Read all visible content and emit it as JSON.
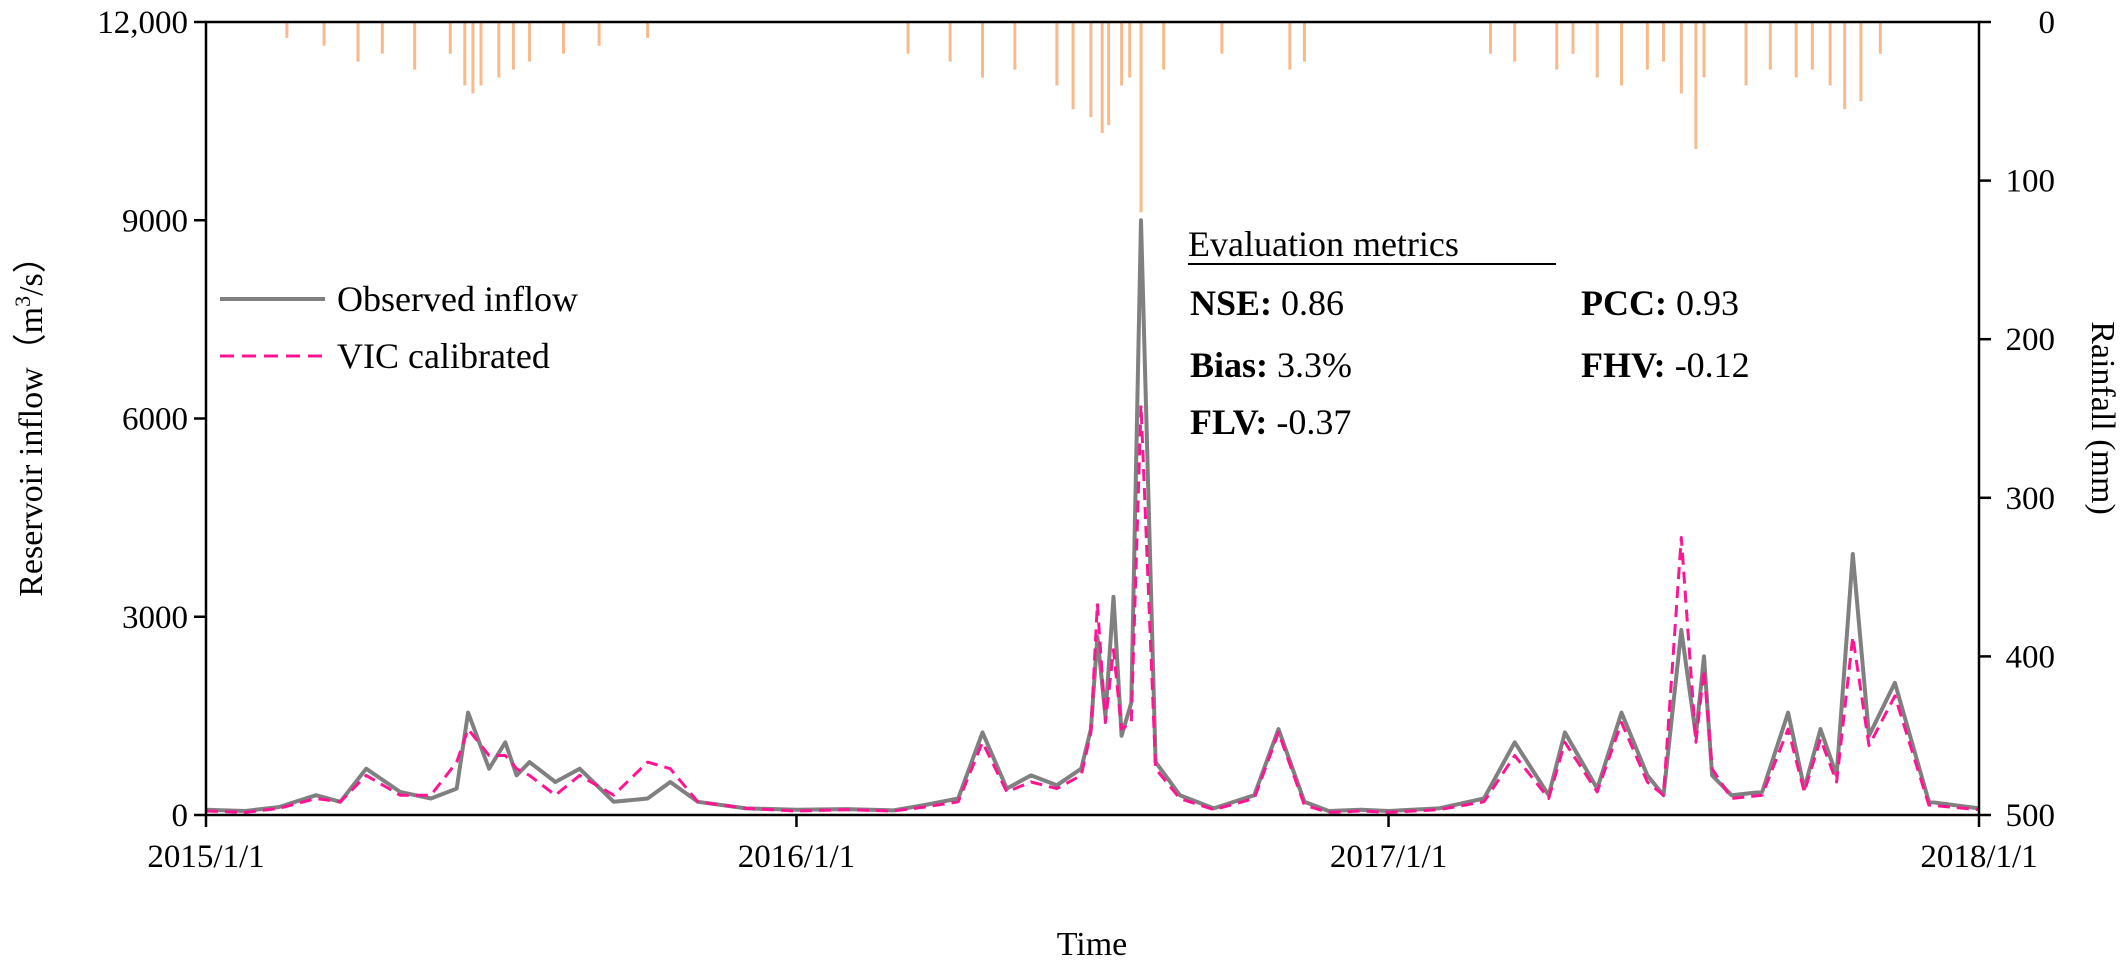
{
  "chart_data": {
    "type": "line",
    "x_axis": {
      "label": "Time",
      "range": [
        "2015/1/1",
        "2018/1/1"
      ],
      "ticks": [
        "2015/1/1",
        "2016/1/1",
        "2017/1/1",
        "2018/1/1"
      ]
    },
    "y_left": {
      "label_prefix": "Reservoir inflow（m",
      "label_sup": "3",
      "label_suffix": "/s）",
      "ylim": [
        0,
        12000
      ],
      "ticks": [
        "0",
        "3000",
        "6000",
        "9000",
        "12,000"
      ]
    },
    "y_right": {
      "label": "Rainfall (mm)",
      "inverted": true,
      "ylim": [
        0,
        500
      ],
      "ticks": [
        "0",
        "100",
        "200",
        "300",
        "400",
        "500"
      ]
    },
    "legend": {
      "position": "upper-left",
      "items": [
        {
          "label": "Observed inflow",
          "style": "solid",
          "color": "#808080"
        },
        {
          "label": "VIC calibrated",
          "style": "dashed",
          "color": "#ff1493"
        }
      ]
    },
    "metrics": {
      "title": "Evaluation metrics",
      "items": [
        {
          "key": "NSE:",
          "value": " 0.86"
        },
        {
          "key": "PCC:",
          "value": " 0.93"
        },
        {
          "key": "Bias:",
          "value": " 3.3%"
        },
        {
          "key": "FHV:",
          "value": " -0.12"
        },
        {
          "key": "FLV:",
          "value": " -0.37"
        }
      ]
    },
    "colors": {
      "observed": "#808080",
      "vic": "#ff1493",
      "rainfall": "#f9b98a"
    },
    "series": [
      {
        "name": "Observed inflow",
        "x": [
          "2015/1/1",
          "2015/1/25",
          "2015/2/15",
          "2015/3/10",
          "2015/3/25",
          "2015/4/10",
          "2015/5/1",
          "2015/5/20",
          "2015/6/5",
          "2015/6/12",
          "2015/6/25",
          "2015/7/5",
          "2015/7/12",
          "2015/7/20",
          "2015/8/5",
          "2015/8/20",
          "2015/9/10",
          "2015/10/1",
          "2015/10/15",
          "2015/11/1",
          "2015/12/1",
          "2016/1/1",
          "2016/2/1",
          "2016/3/1",
          "2016/3/20",
          "2016/4/10",
          "2016/4/25",
          "2016/5/10",
          "2016/5/25",
          "2016/6/10",
          "2016/6/25",
          "2016/7/1",
          "2016/7/5",
          "2016/7/10",
          "2016/7/15",
          "2016/7/20",
          "2016/7/26",
          "2016/8/1",
          "2016/8/10",
          "2016/8/25",
          "2016/9/15",
          "2016/10/10",
          "2016/10/25",
          "2016/11/10",
          "2016/11/25",
          "2016/12/15",
          "2017/1/1",
          "2017/2/1",
          "2017/3/1",
          "2017/3/20",
          "2017/4/10",
          "2017/4/20",
          "2017/5/10",
          "2017/5/25",
          "2017/6/10",
          "2017/6/20",
          "2017/7/1",
          "2017/7/10",
          "2017/7/15",
          "2017/7/20",
          "2017/8/1",
          "2017/8/20",
          "2017/9/5",
          "2017/9/15",
          "2017/9/25",
          "2017/10/5",
          "2017/10/15",
          "2017/10/25",
          "2017/11/10",
          "2017/12/1",
          "2018/1/1"
        ],
        "values": [
          80,
          60,
          120,
          300,
          200,
          700,
          350,
          250,
          400,
          1550,
          700,
          1100,
          600,
          800,
          500,
          700,
          200,
          250,
          500,
          200,
          100,
          80,
          90,
          70,
          150,
          250,
          1250,
          400,
          600,
          450,
          700,
          1300,
          2700,
          1500,
          3300,
          1200,
          1700,
          9000,
          800,
          300,
          100,
          300,
          1300,
          200,
          60,
          80,
          60,
          100,
          250,
          1100,
          300,
          1250,
          400,
          1550,
          600,
          300,
          2800,
          1200,
          2400,
          600,
          300,
          350,
          1550,
          400,
          1300,
          600,
          3950,
          1200,
          2000,
          200,
          100
        ]
      },
      {
        "name": "VIC calibrated",
        "x": [
          "2015/1/1",
          "2015/1/25",
          "2015/2/15",
          "2015/3/10",
          "2015/3/25",
          "2015/4/10",
          "2015/5/1",
          "2015/5/20",
          "2015/6/5",
          "2015/6/12",
          "2015/6/25",
          "2015/7/5",
          "2015/7/12",
          "2015/7/20",
          "2015/8/5",
          "2015/8/20",
          "2015/9/10",
          "2015/10/1",
          "2015/10/15",
          "2015/11/1",
          "2015/12/1",
          "2016/1/1",
          "2016/2/1",
          "2016/3/1",
          "2016/3/20",
          "2016/4/10",
          "2016/4/25",
          "2016/5/10",
          "2016/5/25",
          "2016/6/10",
          "2016/6/25",
          "2016/7/1",
          "2016/7/5",
          "2016/7/10",
          "2016/7/15",
          "2016/7/20",
          "2016/7/26",
          "2016/8/1",
          "2016/8/10",
          "2016/8/25",
          "2016/9/15",
          "2016/10/10",
          "2016/10/25",
          "2016/11/10",
          "2016/11/25",
          "2016/12/15",
          "2017/1/1",
          "2017/2/1",
          "2017/3/1",
          "2017/3/20",
          "2017/4/10",
          "2017/4/20",
          "2017/5/10",
          "2017/5/25",
          "2017/6/10",
          "2017/6/20",
          "2017/7/1",
          "2017/7/10",
          "2017/7/15",
          "2017/7/20",
          "2017/8/1",
          "2017/8/20",
          "2017/9/5",
          "2017/9/15",
          "2017/9/25",
          "2017/10/5",
          "2017/10/15",
          "2017/10/25",
          "2017/11/10",
          "2017/12/1",
          "2018/1/1"
        ],
        "values": [
          60,
          40,
          100,
          250,
          200,
          600,
          300,
          300,
          800,
          1300,
          900,
          900,
          700,
          600,
          300,
          600,
          300,
          800,
          700,
          200,
          100,
          60,
          80,
          60,
          120,
          200,
          1100,
          350,
          500,
          400,
          600,
          1250,
          3200,
          1400,
          2500,
          1300,
          1400,
          6200,
          700,
          250,
          80,
          250,
          1250,
          150,
          40,
          60,
          40,
          80,
          200,
          900,
          250,
          1100,
          350,
          1400,
          500,
          300,
          4200,
          1100,
          2200,
          700,
          250,
          300,
          1300,
          350,
          1150,
          500,
          2700,
          1050,
          1800,
          150,
          80
        ]
      },
      {
        "name": "Rainfall",
        "x": [
          "2015/2/20",
          "2015/3/15",
          "2015/4/5",
          "2015/4/20",
          "2015/5/10",
          "2015/6/1",
          "2015/6/10",
          "2015/6/15",
          "2015/6/20",
          "2015/7/1",
          "2015/7/10",
          "2015/7/20",
          "2015/8/10",
          "2015/9/1",
          "2015/10/1",
          "2016/3/10",
          "2016/4/5",
          "2016/4/25",
          "2016/5/15",
          "2016/6/10",
          "2016/6/20",
          "2016/7/1",
          "2016/7/8",
          "2016/7/12",
          "2016/7/20",
          "2016/7/25",
          "2016/8/1",
          "2016/8/15",
          "2016/9/20",
          "2016/11/1",
          "2016/11/10",
          "2017/3/5",
          "2017/3/20",
          "2017/4/15",
          "2017/4/25",
          "2017/5/10",
          "2017/5/25",
          "2017/6/10",
          "2017/6/20",
          "2017/7/1",
          "2017/7/10",
          "2017/7/15",
          "2017/8/10",
          "2017/8/25",
          "2017/9/10",
          "2017/9/20",
          "2017/10/1",
          "2017/10/10",
          "2017/10/20",
          "2017/11/1"
        ],
        "values": [
          10,
          15,
          25,
          20,
          30,
          20,
          40,
          45,
          40,
          35,
          30,
          25,
          20,
          15,
          10,
          20,
          25,
          35,
          30,
          40,
          55,
          60,
          70,
          65,
          40,
          35,
          120,
          30,
          20,
          30,
          25,
          20,
          25,
          30,
          20,
          35,
          40,
          30,
          25,
          45,
          80,
          35,
          40,
          30,
          35,
          30,
          40,
          55,
          50,
          20
        ]
      }
    ]
  }
}
